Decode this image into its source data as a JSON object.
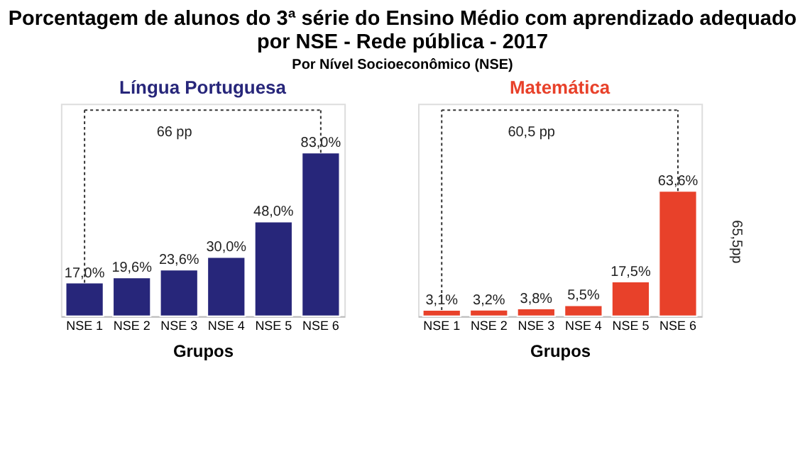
{
  "chart_data": [
    {
      "type": "bar",
      "title": "Porcentagem de alunos do 3ª série do Ensino Médio com aprendizado adequado por NSE - Rede pública - 2017",
      "subtitle": "Língua Portuguesa",
      "xlabel": "Grupos",
      "categories": [
        "NSE 1",
        "NSE 2",
        "NSE 3",
        "NSE 4",
        "NSE 5",
        "NSE 6"
      ],
      "values": [
        17.0,
        19.6,
        23.6,
        30.0,
        48.0,
        83.0
      ],
      "color": "#27267a",
      "value_labels": [
        "17,0%",
        "19,6%",
        "23,6%",
        "30,0%",
        "48,0%",
        "83,0%"
      ],
      "annotations": [
        "Por Nível Socioeconômico (NSE)",
        "66 pp"
      ]
    },
    {
      "type": "bar",
      "title": "Matemática",
      "xlabel": "Grupos",
      "categories": [
        "NSE 1",
        "NSE 2",
        "NSE 3",
        "NSE 4",
        "NSE 5",
        "NSE 6"
      ],
      "values": [
        3.1,
        3.2,
        3.8,
        5.5,
        17.5,
        63.6
      ],
      "color": "#e8412a",
      "value_labels": [
        "3,1%",
        "3,2%",
        "3,8%",
        "5,5%",
        "17,5%",
        "63,6%"
      ],
      "annotations": [
        "60,5 pp",
        "65,5pp"
      ]
    }
  ]
}
